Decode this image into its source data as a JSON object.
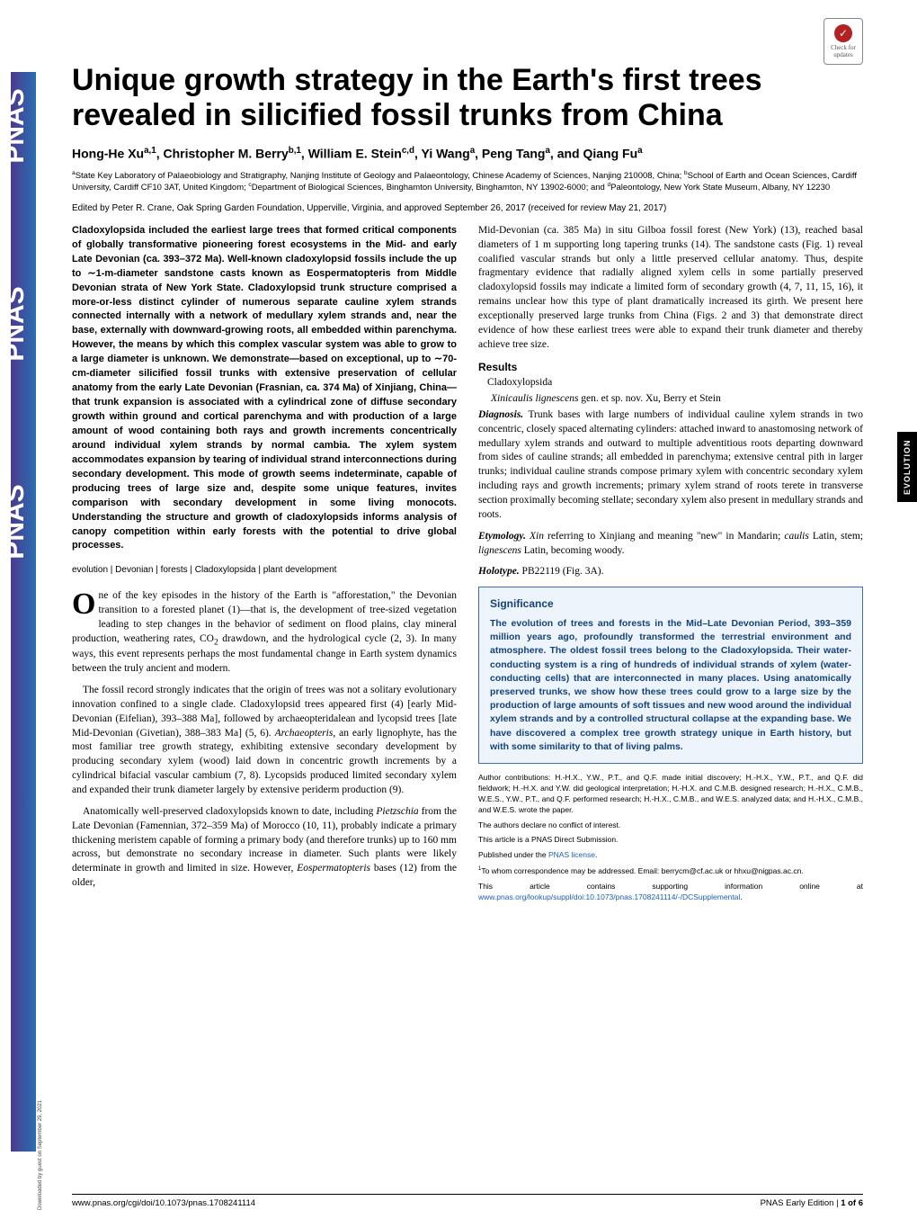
{
  "badge": {
    "label": "Check for updates"
  },
  "title": "Unique growth strategy in the Earth's first trees revealed in silicified fossil trunks from China",
  "authors_html": "Hong-He Xu<sup>a,1</sup>, Christopher M. Berry<sup>b,1</sup>, William E. Stein<sup>c,d</sup>, Yi Wang<sup>a</sup>, Peng Tang<sup>a</sup>, and Qiang Fu<sup>a</sup>",
  "affiliations_html": "<sup>a</sup>State Key Laboratory of Palaeobiology and Stratigraphy, Nanjing Institute of Geology and Palaeontology, Chinese Academy of Sciences, Nanjing 210008, China; <sup>b</sup>School of Earth and Ocean Sciences, Cardiff University, Cardiff CF10 3AT, United Kingdom; <sup>c</sup>Department of Biological Sciences, Binghamton University, Binghamton, NY 13902-6000; and <sup>d</sup>Paleontology, New York State Museum, Albany, NY 12230",
  "edited": "Edited by Peter R. Crane, Oak Spring Garden Foundation, Upperville, Virginia, and approved September 26, 2017 (received for review May 21, 2017)",
  "abstract": "Cladoxylopsida included the earliest large trees that formed critical components of globally transformative pioneering forest ecosystems in the Mid- and early Late Devonian (ca. 393–372 Ma). Well-known cladoxylopsid fossils include the up to ∼1-m-diameter sandstone casts known as Eospermatopteris from Middle Devonian strata of New York State. Cladoxylopsid trunk structure comprised a more-or-less distinct cylinder of numerous separate cauline xylem strands connected internally with a network of medullary xylem strands and, near the base, externally with downward-growing roots, all embedded within parenchyma. However, the means by which this complex vascular system was able to grow to a large diameter is unknown. We demonstrate—based on exceptional, up to ∼70-cm-diameter silicified fossil trunks with extensive preservation of cellular anatomy from the early Late Devonian (Frasnian, ca. 374 Ma) of Xinjiang, China—that trunk expansion is associated with a cylindrical zone of diffuse secondary growth within ground and cortical parenchyma and with production of a large amount of wood containing both rays and growth increments concentrically around individual xylem strands by normal cambia. The xylem system accommodates expansion by tearing of individual strand interconnections during secondary development. This mode of growth seems indeterminate, capable of producing trees of large size and, despite some unique features, invites comparison with secondary development in some living monocots. Understanding the structure and growth of cladoxylopsids informs analysis of canopy competition within early forests with the potential to drive global processes.",
  "keywords": "evolution | Devonian | forests | Cladoxylopsida | plant development",
  "intro_p1_html": "<span class=\"dropcap\">O</span>ne of the key episodes in the history of the Earth is \"afforestation,\" the Devonian transition to a forested planet (1)—that is, the development of tree-sized vegetation leading to step changes in the behavior of sediment on flood plains, clay mineral production, weathering rates, CO<sub>2</sub> drawdown, and the hydrological cycle (2, 3). In many ways, this event represents perhaps the most fundamental change in Earth system dynamics between the truly ancient and modern.",
  "intro_p2_html": "The fossil record strongly indicates that the origin of trees was not a solitary evolutionary innovation confined to a single clade. Cladoxylopsid trees appeared first (4) [early Mid-Devonian (Eifelian), 393–388 Ma], followed by archaeopteridalean and lycopsid trees [late Mid-Devonian (Givetian), 388–383 Ma] (5, 6). <span class=\"ital\">Archaeopteris</span>, an early lignophyte, has the most familiar tree growth strategy, exhibiting extensive secondary development by producing secondary xylem (wood) laid down in concentric growth increments by a cylindrical bifacial vascular cambium (7, 8). Lycopsids produced limited secondary xylem and expanded their trunk diameter largely by extensive periderm production (9).",
  "intro_p3_html": "Anatomically well-preserved cladoxylopsids known to date, including <span class=\"ital\">Pietzschia</span> from the Late Devonian (Famennian, 372–359 Ma) of Morocco (10, 11), probably indicate a primary thickening meristem capable of forming a primary body (and therefore trunks) up to 160 mm across, but demonstrate no secondary increase in diameter. Such plants were likely determinate in growth and limited in size. However, <span class=\"ital\">Eospermatopteris</span> bases (12) from the older,",
  "right_p1_html": "Mid-Devonian (ca. 385 Ma) in situ Gilboa fossil forest (New York) (13), reached basal diameters of 1 m supporting long tapering trunks (14). The sandstone casts (Fig. 1) reveal coalified vascular strands but only a little preserved cellular anatomy. Thus, despite fragmentary evidence that radially aligned xylem cells in some partially preserved cladoxylopsid fossils may indicate a limited form of secondary growth (4, 7, 11, 15, 16), it remains unclear how this type of plant dramatically increased its girth. We present here exceptionally preserved large trunks from China (Figs. 2 and 3) that demonstrate direct evidence of how these earliest trees were able to expand their trunk diameter and thereby achieve tree size.",
  "results_heading": "Results",
  "taxon_heading": "Cladoxylopsida",
  "taxon_name_html": "<span class=\"ital\">Xinicaulis lignescens</span> gen. et sp. nov. Xu, Berry et Stein",
  "diagnosis_label": "Diagnosis.",
  "diagnosis_text": "Trunk bases with large numbers of individual cauline xylem strands in two concentric, closely spaced alternating cylinders: attached inward to anastomosing network of medullary xylem strands and outward to multiple adventitious roots departing downward from sides of cauline strands; all embedded in parenchyma; extensive central pith in larger trunks; individual cauline strands compose primary xylem with concentric secondary xylem including rays and growth increments; primary xylem strand of roots terete in transverse section proximally becoming stellate; secondary xylem also present in medullary strands and roots.",
  "etymology_label": "Etymology.",
  "etymology_html": "<span class=\"ital\">Xin</span> referring to Xinjiang and meaning \"new\" in Mandarin; <span class=\"ital\">caulis</span> Latin, stem; <span class=\"ital\">lignescens</span> Latin, becoming woody.",
  "holotype_label": "Holotype.",
  "holotype_text": "PB22119 (Fig. 3A).",
  "significance_heading": "Significance",
  "significance_text": "The evolution of trees and forests in the Mid–Late Devonian Period, 393–359 million years ago, profoundly transformed the terrestrial environment and atmosphere. The oldest fossil trees belong to the Cladoxylopsida. Their water-conducting system is a ring of hundreds of individual strands of xylem (water-conducting cells) that are interconnected in many places. Using anatomically preserved trunks, we show how these trees could grow to a large size by the production of large amounts of soft tissues and new wood around the individual xylem strands and by a controlled structural collapse at the expanding base. We have discovered a complex tree growth strategy unique in Earth history, but with some similarity to that of living palms.",
  "fine": {
    "contrib": "Author contributions: H.-H.X., Y.W., P.T., and Q.F. made initial discovery; H.-H.X., Y.W., P.T., and Q.F. did fieldwork; H.-H.X. and Y.W. did geological interpretation; H.-H.X. and C.M.B. designed research; H.-H.X., C.M.B., W.E.S., Y.W., P.T., and Q.F. performed research; H.-H.X., C.M.B., and W.E.S. analyzed data; and H.-H.X., C.M.B., and W.E.S. wrote the paper.",
    "coi": "The authors declare no conflict of interest.",
    "direct": "This article is a PNAS Direct Submission.",
    "license_html": "Published under the <span class=\"link\">PNAS license</span>.",
    "corr_html": "<sup>1</sup>To whom correspondence may be addressed. Email: berrycm@cf.ac.uk or hhxu@nigpas.ac.cn.",
    "supp_html": "This article contains supporting information online at <span class=\"link\">www.pnas.org/lookup/suppl/doi:10.1073/pnas.1708241114/-/DCSupplemental</span>."
  },
  "footer": {
    "left": "www.pnas.org/cgi/doi/10.1073/pnas.1708241114",
    "right_html": "PNAS Early Edition | <b>1 of 6</b>"
  },
  "side_tab": "EVOLUTION",
  "download_note": "Downloaded by guest on September 29, 2021",
  "colors": {
    "sig_border": "#3a6fb7",
    "sig_bg": "#eef4fb",
    "sig_text": "#14427a",
    "link": "#1a5fb4",
    "badge_red": "#b22222"
  }
}
